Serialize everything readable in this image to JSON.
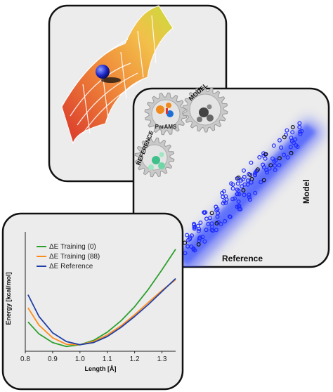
{
  "gear_labels": {
    "params": "ParAMS",
    "model": "MODEL",
    "reference": "REFERENCE"
  },
  "scatter_panel": {
    "xlabel": "Reference",
    "ylabel": "Model",
    "point_color": "#1f2cff",
    "glow_color": "#2a3cff"
  },
  "colors": {
    "panel_fill": "#ececec",
    "panel_stroke": "#111111",
    "gear_fill": "#c9c9c9",
    "training0": "#2ca02c",
    "training88": "#ff8c1a",
    "reference": "#1f3fa6"
  },
  "chart_data": {
    "type": "line",
    "xlabel": "Length [Å]",
    "ylabel": "Energy [kcal/mol]",
    "xlim": [
      0.8,
      1.35
    ],
    "ylim": [
      -3,
      52
    ],
    "x_ticks": [
      "0.8",
      "0.9",
      "1.0",
      "1.1",
      "1.2",
      "1.3"
    ],
    "legend_position": "top-left",
    "series": [
      {
        "name": "ΔE Training (0)",
        "color": "#2ca02c",
        "x": [
          0.81,
          0.85,
          0.9,
          0.95,
          1.0,
          1.05,
          1.1,
          1.15,
          1.2,
          1.25,
          1.3,
          1.35
        ],
        "y": [
          10.5,
          5.0,
          1.0,
          -0.8,
          0.0,
          2.0,
          5.8,
          11.0,
          17.5,
          25.5,
          34.5,
          44.0
        ]
      },
      {
        "name": "ΔE Training (88)",
        "color": "#ff8c1a",
        "x": [
          0.81,
          0.85,
          0.9,
          0.95,
          1.0,
          1.05,
          1.1,
          1.15,
          1.2,
          1.25,
          1.3,
          1.35
        ],
        "y": [
          17.0,
          9.0,
          3.2,
          0.2,
          0.0,
          1.5,
          4.5,
          8.7,
          13.8,
          19.5,
          25.0,
          30.0
        ]
      },
      {
        "name": "ΔE Reference",
        "color": "#1f3fa6",
        "x": [
          0.81,
          0.85,
          0.9,
          0.95,
          1.0,
          1.05,
          1.1,
          1.15,
          1.2,
          1.25,
          1.3,
          1.35
        ],
        "y": [
          23.0,
          13.0,
          5.5,
          1.5,
          0.0,
          1.0,
          3.8,
          8.0,
          13.0,
          18.5,
          24.5,
          30.5
        ]
      }
    ]
  }
}
